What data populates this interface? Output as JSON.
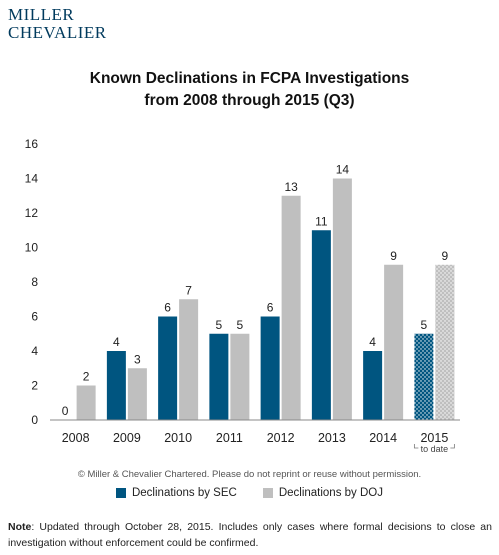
{
  "logo": {
    "line1": "MILLER",
    "line2": "CHEVALIER"
  },
  "chart_data": {
    "type": "bar",
    "title_line1": "Known Declinations in FCPA Investigations",
    "title_line2": "from 2008 through 2015 (Q3)",
    "categories": [
      "2008",
      "2009",
      "2010",
      "2011",
      "2012",
      "2013",
      "2014",
      "2015"
    ],
    "category_sublabel": {
      "index": 7,
      "text": "to date"
    },
    "series": [
      {
        "name": "Declinations by SEC",
        "color": "#005580",
        "values": [
          0,
          4,
          6,
          5,
          6,
          11,
          4,
          5
        ]
      },
      {
        "name": "Declinations by DOJ",
        "color": "#bfbfbf",
        "values": [
          2,
          3,
          7,
          5,
          13,
          14,
          9,
          9
        ]
      }
    ],
    "ylim": [
      0,
      16
    ],
    "yticks": [
      0,
      2,
      4,
      6,
      8,
      10,
      12,
      14,
      16
    ],
    "grid": false,
    "legend": "bottom",
    "xlabel": "",
    "ylabel": ""
  },
  "copyright": "© Miller & Chevalier Chartered. Please do not reprint or reuse without permission.",
  "note": {
    "label": "Note",
    "text": ": Updated through October 28, 2015. Includes only cases where formal decisions to close an investigation without enforcement could be confirmed."
  }
}
